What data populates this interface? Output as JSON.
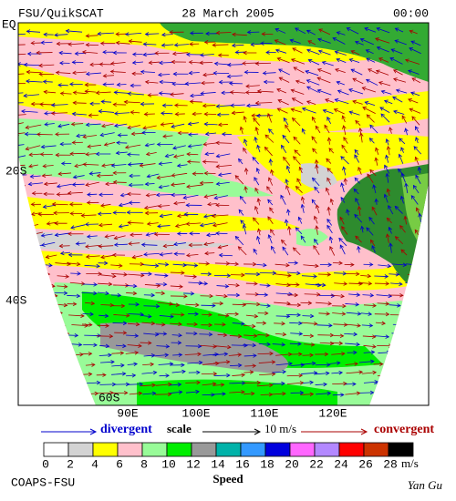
{
  "header": {
    "left": "FSU/QuikSCAT",
    "center": "28 March 2005",
    "right": "00:00"
  },
  "lat_labels": [
    "EQ",
    "20S",
    "40S",
    "60S"
  ],
  "lon_labels": [
    "90E",
    "100E",
    "110E",
    "120E"
  ],
  "scale": {
    "divergent": "divergent",
    "label": "scale",
    "reference": "10 m/s",
    "convergent": "convergent"
  },
  "colorbar": {
    "title": "Speed",
    "unit": "m/s",
    "ticks": [
      0,
      2,
      4,
      6,
      8,
      10,
      12,
      14,
      16,
      18,
      20,
      22,
      24,
      26,
      28
    ],
    "colors": [
      "#ffffff",
      "#d3d3d3",
      "#ffff00",
      "#ffc0cb",
      "#98fb98",
      "#00ee00",
      "#999999",
      "#00b2a9",
      "#3399ff",
      "#0000dd",
      "#ff66ff",
      "#b388ff",
      "#ff0000",
      "#cc3300",
      "#000000"
    ]
  },
  "footer": {
    "left": "COAPS-FSU",
    "right": "Yan Gu"
  }
}
